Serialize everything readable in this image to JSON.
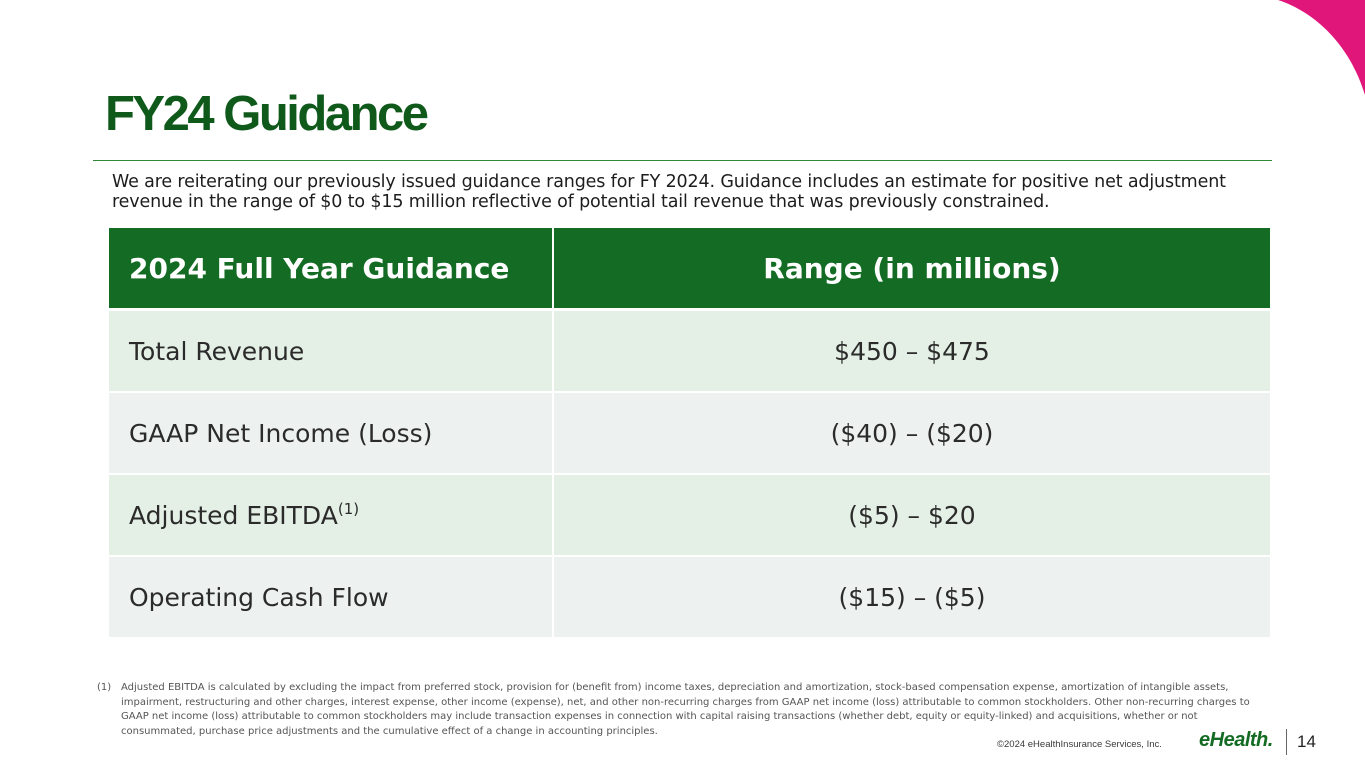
{
  "title": "FY24 Guidance",
  "intro": "We are reiterating our previously issued guidance ranges for FY 2024. Guidance includes an estimate for positive net adjustment revenue in the range of $0 to $15 million reflective of potential tail revenue that was previously constrained.",
  "table": {
    "headers": [
      "2024 Full Year Guidance",
      "Range (in millions)"
    ],
    "rows": [
      {
        "metric": "Total Revenue",
        "range": "$450 – $475"
      },
      {
        "metric": "GAAP Net Income (Loss)",
        "range": "($40) – ($20)"
      },
      {
        "metric": "Adjusted EBITDA",
        "sup": "(1)",
        "range": "($5) – $20"
      },
      {
        "metric": "Operating Cash Flow",
        "range": "($15) – ($5)"
      }
    ]
  },
  "footnote": {
    "marker": "(1)",
    "text": "Adjusted EBITDA is calculated by excluding the impact from preferred stock, provision for (benefit from) income taxes, depreciation and amortization, stock-based compensation expense, amortization of intangible assets, impairment, restructuring and other charges, interest expense, other income (expense), net, and other non-recurring charges from GAAP net income (loss) attributable to common stockholders. Other non-recurring charges to GAAP net income (loss) attributable to common stockholders may include transaction expenses in connection with capital raising transactions (whether debt, equity or equity-linked) and acquisitions, whether or not consummated, purchase price adjustments and the cumulative effect of a change in accounting principles."
  },
  "footer": {
    "copyright": "©2024 eHealthInsurance Services, Inc.",
    "logo": "eHealth.",
    "page_number": "14"
  },
  "colors": {
    "brand_green": "#146c24",
    "title_green": "#0f5a1b",
    "accent_pink": "#e0167a"
  }
}
